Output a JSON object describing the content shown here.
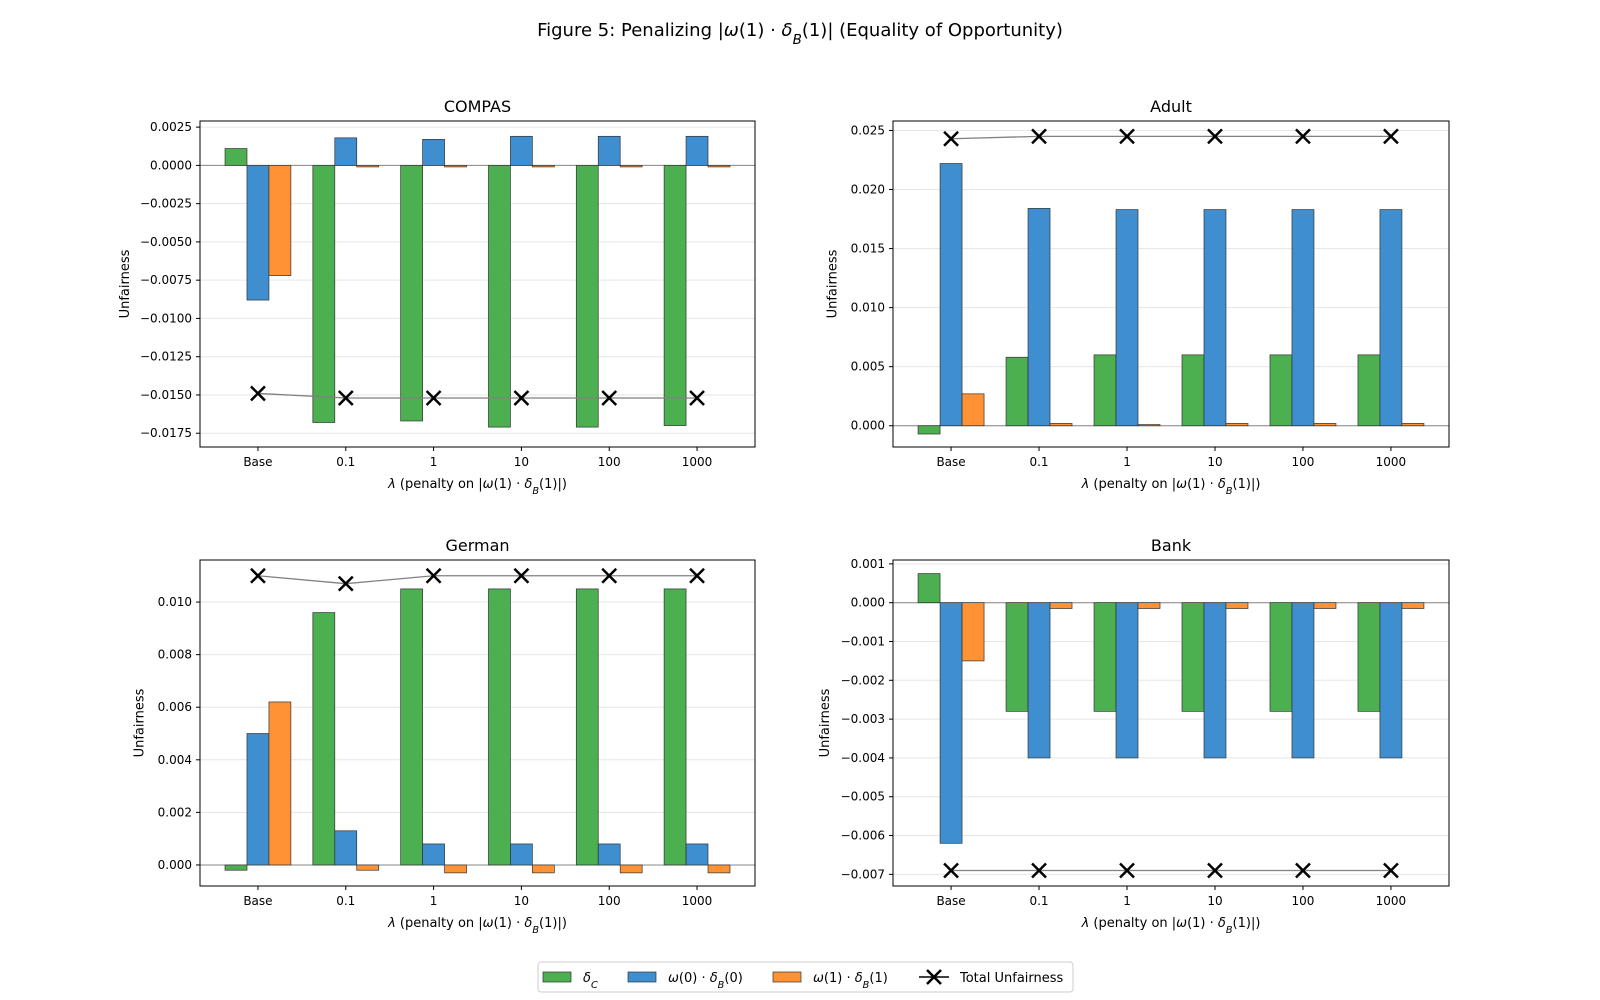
{
  "figure": {
    "title": "Figure 5: Penalizing |ω(1) · δ_B(1)| (Equality of Opportunity)"
  },
  "legend": {
    "position": "bottom-center",
    "entries": [
      {
        "key": "dC",
        "label": "δ_C",
        "color": "#4caf50"
      },
      {
        "key": "w0",
        "label": "ω(0) · δ_B(0)",
        "color": "#3f8fd0"
      },
      {
        "key": "w1",
        "label": "ω(1) · δ_B(1)",
        "color": "#ff9234"
      },
      {
        "key": "total",
        "label": "Total Unfairness",
        "color": "#000000"
      }
    ]
  },
  "chart_data": [
    {
      "type": "bar",
      "title": "COMPAS",
      "xlabel": "λ (penalty on |ω(1) · δ_B(1)|)",
      "ylabel": "Unfairness",
      "categories": [
        "Base",
        "0.1",
        "1",
        "10",
        "100",
        "1000"
      ],
      "ylim": [
        -0.0184,
        0.0029
      ],
      "yticks": [
        0.0025,
        0.0,
        -0.0025,
        -0.005,
        -0.0075,
        -0.01,
        -0.0125,
        -0.015,
        -0.0175
      ],
      "ytick_labels": [
        "0.0025",
        "0.0000",
        "−0.0025",
        "−0.0050",
        "−0.0075",
        "−0.0100",
        "−0.0125",
        "−0.0150",
        "−0.0175"
      ],
      "grid": true,
      "series": [
        {
          "name": "δ_C",
          "values": [
            0.0011,
            -0.0168,
            -0.0167,
            -0.0171,
            -0.0171,
            -0.017
          ]
        },
        {
          "name": "ω(0) · δ_B(0)",
          "values": [
            -0.0088,
            0.0018,
            0.0017,
            0.0019,
            0.0019,
            0.0019
          ]
        },
        {
          "name": "ω(1) · δ_B(1)",
          "values": [
            -0.0072,
            -0.0001,
            -0.0001,
            -0.0001,
            -0.0001,
            -0.0001
          ]
        },
        {
          "name": "Total Unfairness",
          "type": "line",
          "values": [
            -0.0149,
            -0.0152,
            -0.0152,
            -0.0152,
            -0.0152,
            -0.0152
          ]
        }
      ]
    },
    {
      "type": "bar",
      "title": "Adult",
      "xlabel": "λ (penalty on |ω(1) · δ_B(1)|)",
      "ylabel": "Unfairness",
      "categories": [
        "Base",
        "0.1",
        "1",
        "10",
        "100",
        "1000"
      ],
      "ylim": [
        -0.0018,
        0.0258
      ],
      "yticks": [
        0.025,
        0.02,
        0.015,
        0.01,
        0.005,
        0.0
      ],
      "ytick_labels": [
        "0.025",
        "0.020",
        "0.015",
        "0.010",
        "0.005",
        "0.000"
      ],
      "grid": true,
      "series": [
        {
          "name": "δ_C",
          "values": [
            -0.0007,
            0.0058,
            0.006,
            0.006,
            0.006,
            0.006
          ]
        },
        {
          "name": "ω(0) · δ_B(0)",
          "values": [
            0.0222,
            0.0184,
            0.0183,
            0.0183,
            0.0183,
            0.0183
          ]
        },
        {
          "name": "ω(1) · δ_B(1)",
          "values": [
            0.0027,
            0.0002,
            0.0001,
            0.0002,
            0.0002,
            0.0002
          ]
        },
        {
          "name": "Total Unfairness",
          "type": "line",
          "values": [
            0.0243,
            0.0245,
            0.0245,
            0.0245,
            0.0245,
            0.0245
          ]
        }
      ]
    },
    {
      "type": "bar",
      "title": "German",
      "xlabel": "λ (penalty on |ω(1) · δ_B(1)|)",
      "ylabel": "Unfairness",
      "categories": [
        "Base",
        "0.1",
        "1",
        "10",
        "100",
        "1000"
      ],
      "ylim": [
        -0.0008,
        0.0116
      ],
      "yticks": [
        0.01,
        0.008,
        0.006,
        0.004,
        0.002,
        0.0
      ],
      "ytick_labels": [
        "0.010",
        "0.008",
        "0.006",
        "0.004",
        "0.002",
        "0.000"
      ],
      "grid": true,
      "series": [
        {
          "name": "δ_C",
          "values": [
            -0.0002,
            0.0096,
            0.0105,
            0.0105,
            0.0105,
            0.0105
          ]
        },
        {
          "name": "ω(0) · δ_B(0)",
          "values": [
            0.005,
            0.0013,
            0.0008,
            0.0008,
            0.0008,
            0.0008
          ]
        },
        {
          "name": "ω(1) · δ_B(1)",
          "values": [
            0.0062,
            -0.0002,
            -0.0003,
            -0.0003,
            -0.0003,
            -0.0003
          ]
        },
        {
          "name": "Total Unfairness",
          "type": "line",
          "values": [
            0.011,
            0.0107,
            0.011,
            0.011,
            0.011,
            0.011
          ]
        }
      ]
    },
    {
      "type": "bar",
      "title": "Bank",
      "xlabel": "λ (penalty on |ω(1) · δ_B(1)|)",
      "ylabel": "Unfairness",
      "categories": [
        "Base",
        "0.1",
        "1",
        "10",
        "100",
        "1000"
      ],
      "ylim": [
        -0.0073,
        0.0011
      ],
      "yticks": [
        0.001,
        0.0,
        -0.001,
        -0.002,
        -0.003,
        -0.004,
        -0.005,
        -0.006,
        -0.007
      ],
      "ytick_labels": [
        "0.001",
        "0.000",
        "−0.001",
        "−0.002",
        "−0.003",
        "−0.004",
        "−0.005",
        "−0.006",
        "−0.007"
      ],
      "grid": true,
      "series": [
        {
          "name": "δ_C",
          "values": [
            0.00075,
            -0.0028,
            -0.0028,
            -0.0028,
            -0.0028,
            -0.0028
          ]
        },
        {
          "name": "ω(0) · δ_B(0)",
          "values": [
            -0.0062,
            -0.004,
            -0.004,
            -0.004,
            -0.004,
            -0.004
          ]
        },
        {
          "name": "ω(1) · δ_B(1)",
          "values": [
            -0.0015,
            -0.00015,
            -0.00015,
            -0.00015,
            -0.00015,
            -0.00015
          ]
        },
        {
          "name": "Total Unfairness",
          "type": "line",
          "values": [
            -0.0069,
            -0.0069,
            -0.0069,
            -0.0069,
            -0.0069,
            -0.0069
          ]
        }
      ]
    }
  ]
}
